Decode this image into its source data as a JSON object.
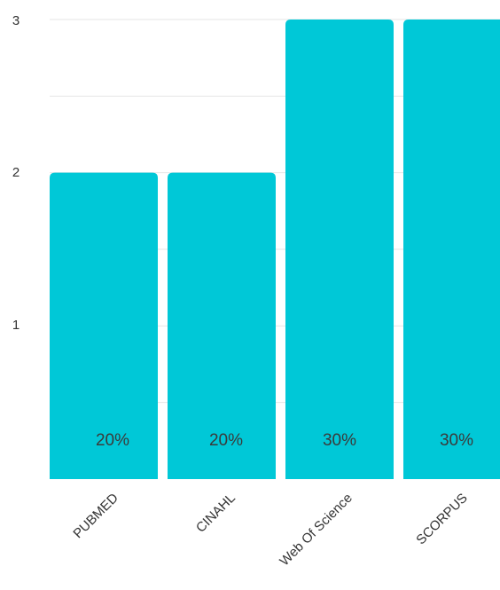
{
  "chart_data": {
    "type": "bar",
    "categories": [
      "PUBMED",
      "CINAHL",
      "Web Of Science",
      "SCORPUS"
    ],
    "values": [
      2,
      2,
      3,
      3
    ],
    "data_labels": [
      "20%",
      "20%",
      "30%",
      "30%"
    ],
    "yticks": [
      "1",
      "2",
      "3"
    ],
    "ylim": [
      0,
      3
    ],
    "grid": true,
    "bar_color": "#00C8D7",
    "grid_color": "#E6E6E6"
  }
}
